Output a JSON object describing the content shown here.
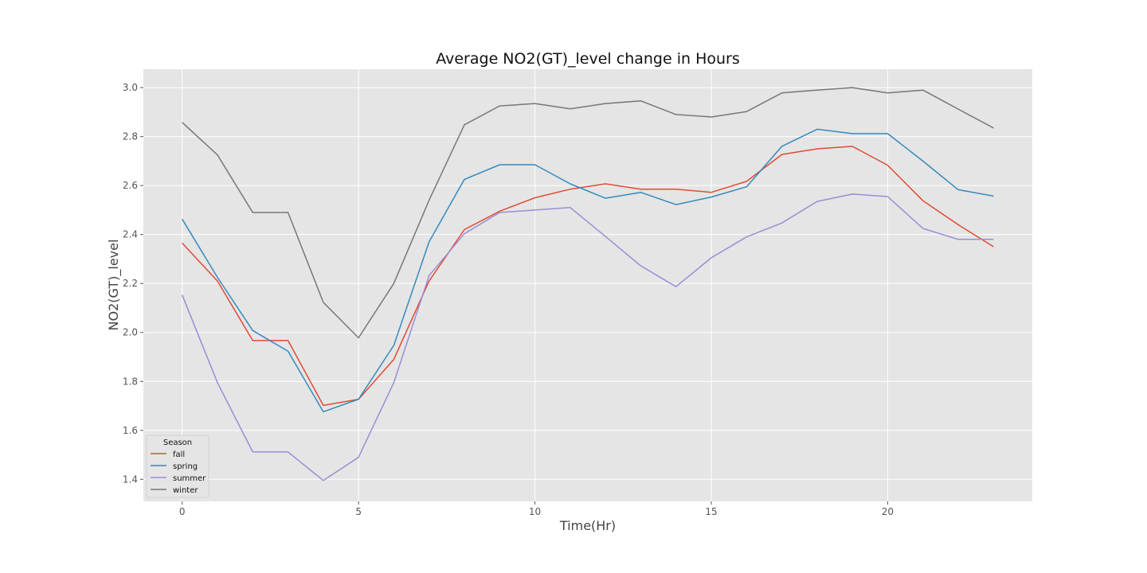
{
  "chart_data": {
    "type": "line",
    "title": "Average NO2(GT)_level change in Hours",
    "xlabel": "Time(Hr)",
    "ylabel": "NO2(GT)_level",
    "xlim": [
      -1.1,
      24.1
    ],
    "ylim": [
      1.31,
      3.075
    ],
    "xticks": [
      0,
      5,
      10,
      15,
      20
    ],
    "yticks": [
      1.4,
      1.6,
      1.8,
      2.0,
      2.2,
      2.4,
      2.6,
      2.8,
      3.0
    ],
    "ytick_labels": [
      "1.4",
      "1.6",
      "1.8",
      "2.0",
      "2.2",
      "2.4",
      "2.6",
      "2.8",
      "3.0"
    ],
    "grid": true,
    "legend": {
      "title": "Season",
      "placement": "lower-left"
    },
    "x": [
      0,
      1,
      2,
      3,
      4,
      5,
      6,
      7,
      8,
      9,
      10,
      11,
      12,
      13,
      14,
      15,
      16,
      17,
      18,
      19,
      20,
      21,
      22,
      23
    ],
    "series": [
      {
        "name": "fall",
        "color": "#E24A33",
        "values": [
          2.365,
          2.21,
          1.967,
          1.967,
          1.702,
          1.727,
          1.89,
          2.21,
          2.42,
          2.495,
          2.55,
          2.585,
          2.607,
          2.585,
          2.585,
          2.572,
          2.617,
          2.727,
          2.75,
          2.76,
          2.683,
          2.538,
          2.44,
          2.35
        ]
      },
      {
        "name": "spring",
        "color": "#348ABD",
        "values": [
          2.463,
          2.225,
          2.008,
          1.923,
          1.676,
          1.727,
          1.947,
          2.37,
          2.625,
          2.685,
          2.685,
          2.607,
          2.548,
          2.572,
          2.522,
          2.553,
          2.595,
          2.76,
          2.83,
          2.812,
          2.812,
          2.7,
          2.583,
          2.557
        ]
      },
      {
        "name": "summer",
        "color": "#988ED5",
        "values": [
          2.153,
          1.795,
          1.512,
          1.512,
          1.395,
          1.49,
          1.795,
          2.232,
          2.403,
          2.49,
          2.5,
          2.51,
          2.392,
          2.272,
          2.187,
          2.305,
          2.39,
          2.447,
          2.535,
          2.565,
          2.555,
          2.425,
          2.38,
          2.38
        ]
      },
      {
        "name": "winter",
        "color": "#777777",
        "values": [
          2.858,
          2.725,
          2.49,
          2.49,
          2.123,
          1.978,
          2.2,
          2.54,
          2.848,
          2.925,
          2.935,
          2.913,
          2.935,
          2.946,
          2.89,
          2.88,
          2.902,
          2.978,
          2.99,
          3.0,
          2.978,
          2.99,
          2.912,
          2.835
        ]
      }
    ]
  }
}
